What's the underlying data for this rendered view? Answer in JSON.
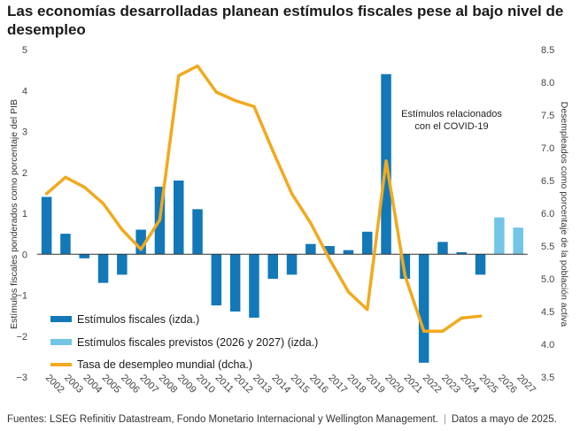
{
  "title": "Las economías desarrolladas planean estímulos fiscales pese al bajo nivel de desempleo",
  "footer": {
    "sources": "Fuentes: LSEG Refinitiv Datastream, Fondo Monetario Internacional y Wellington Management.",
    "separator": "|",
    "date": "Datos a mayo de 2025."
  },
  "colors": {
    "stimulus": "#1278b8",
    "planned": "#73c5e6",
    "unemployment": "#f2a91e",
    "zero_line": "#333333"
  },
  "chart_data": {
    "type": "bar",
    "categories": [
      "2002",
      "2003",
      "2004",
      "2005",
      "2006",
      "2007",
      "2008",
      "2009",
      "2010",
      "2011",
      "2012",
      "2013",
      "2014",
      "2015",
      "2016",
      "2017",
      "2018",
      "2019",
      "2020",
      "2021",
      "2022",
      "2023",
      "2024",
      "2025",
      "2026",
      "2027"
    ],
    "series": [
      {
        "name": "Estímulos fiscales (izda.)",
        "axis": "left",
        "type": "bar",
        "values": [
          1.4,
          0.5,
          -0.1,
          -0.7,
          -0.5,
          0.6,
          1.65,
          1.8,
          1.1,
          -1.25,
          -1.4,
          -1.55,
          -0.6,
          -0.5,
          0.25,
          0.2,
          0.1,
          0.55,
          4.4,
          -0.6,
          -2.65,
          0.3,
          0.05,
          -0.5,
          null,
          null
        ]
      },
      {
        "name": "Estímulos fiscales previstos (2026 y 2027) (izda.)",
        "axis": "left",
        "type": "bar",
        "values": [
          null,
          null,
          null,
          null,
          null,
          null,
          null,
          null,
          null,
          null,
          null,
          null,
          null,
          null,
          null,
          null,
          null,
          null,
          null,
          null,
          null,
          null,
          null,
          null,
          0.9,
          0.65
        ]
      },
      {
        "name": "Tasa de desempleo mundial (dcha.)",
        "axis": "right",
        "type": "line",
        "values": [
          6.3,
          6.55,
          6.4,
          6.15,
          5.75,
          5.45,
          5.9,
          8.1,
          8.25,
          7.85,
          7.72,
          7.63,
          6.95,
          6.3,
          5.85,
          5.3,
          4.8,
          4.53,
          6.8,
          5.05,
          4.2,
          4.2,
          4.4,
          4.43,
          null,
          null
        ]
      }
    ],
    "ylabel_left": "Estímulos fiscales ponderados como porcentaje del PIB",
    "ylabel_right": "Desempleados como porcentaje de la población activa",
    "ylim_left": [
      -3,
      5
    ],
    "ylim_right": [
      3.5,
      8.5
    ],
    "yticks_left": [
      "5",
      "4",
      "3",
      "2",
      "1",
      "0",
      "−1",
      "−2",
      "−3"
    ],
    "yticks_right": [
      "8.5",
      "8.0",
      "7.5",
      "7.0",
      "6.5",
      "6.0",
      "5.5",
      "5.0",
      "4.5",
      "4.0",
      "3.5"
    ],
    "annotation": [
      "Estímulos relacionados",
      "con el COVID-19"
    ],
    "legend_position": "bottom-left",
    "grid": false
  }
}
